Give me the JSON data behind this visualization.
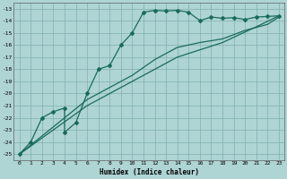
{
  "xlabel": "Humidex (Indice chaleur)",
  "background_color": "#aed4d4",
  "grid_color": "#80b0b0",
  "line_color": "#1a6b5a",
  "xlim": [
    -0.5,
    23.5
  ],
  "ylim": [
    -25.5,
    -12.5
  ],
  "yticks": [
    -25,
    -24,
    -23,
    -22,
    -21,
    -20,
    -19,
    -18,
    -17,
    -16,
    -15,
    -14,
    -13
  ],
  "xticks": [
    0,
    1,
    2,
    3,
    4,
    5,
    6,
    7,
    8,
    9,
    10,
    11,
    12,
    13,
    14,
    15,
    16,
    17,
    18,
    19,
    20,
    21,
    22,
    23
  ],
  "line1_x": [
    0,
    1,
    2,
    3,
    4,
    4,
    5,
    6,
    7,
    8,
    9,
    10,
    11,
    12,
    13,
    14,
    15,
    16,
    17,
    18,
    19,
    20,
    21,
    22,
    23
  ],
  "line1_y": [
    -25,
    -24.0,
    -22.0,
    -21.5,
    -21.2,
    -23.2,
    -22.4,
    -20.0,
    -18.0,
    -17.7,
    -16.0,
    -15.0,
    -13.3,
    -13.15,
    -13.2,
    -13.15,
    -13.3,
    -14.0,
    -13.7,
    -13.8,
    -13.75,
    -13.9,
    -13.7,
    -13.65,
    -13.6
  ],
  "line2_x": [
    0,
    6,
    10,
    12,
    14,
    16,
    18,
    20,
    22,
    23
  ],
  "line2_y": [
    -25,
    -20.5,
    -18.5,
    -17.2,
    -16.2,
    -15.8,
    -15.5,
    -14.8,
    -14.3,
    -13.7
  ],
  "line3_x": [
    0,
    6,
    10,
    14,
    18,
    21,
    23
  ],
  "line3_y": [
    -25,
    -21.0,
    -19.0,
    -17.0,
    -15.8,
    -14.5,
    -13.6
  ]
}
